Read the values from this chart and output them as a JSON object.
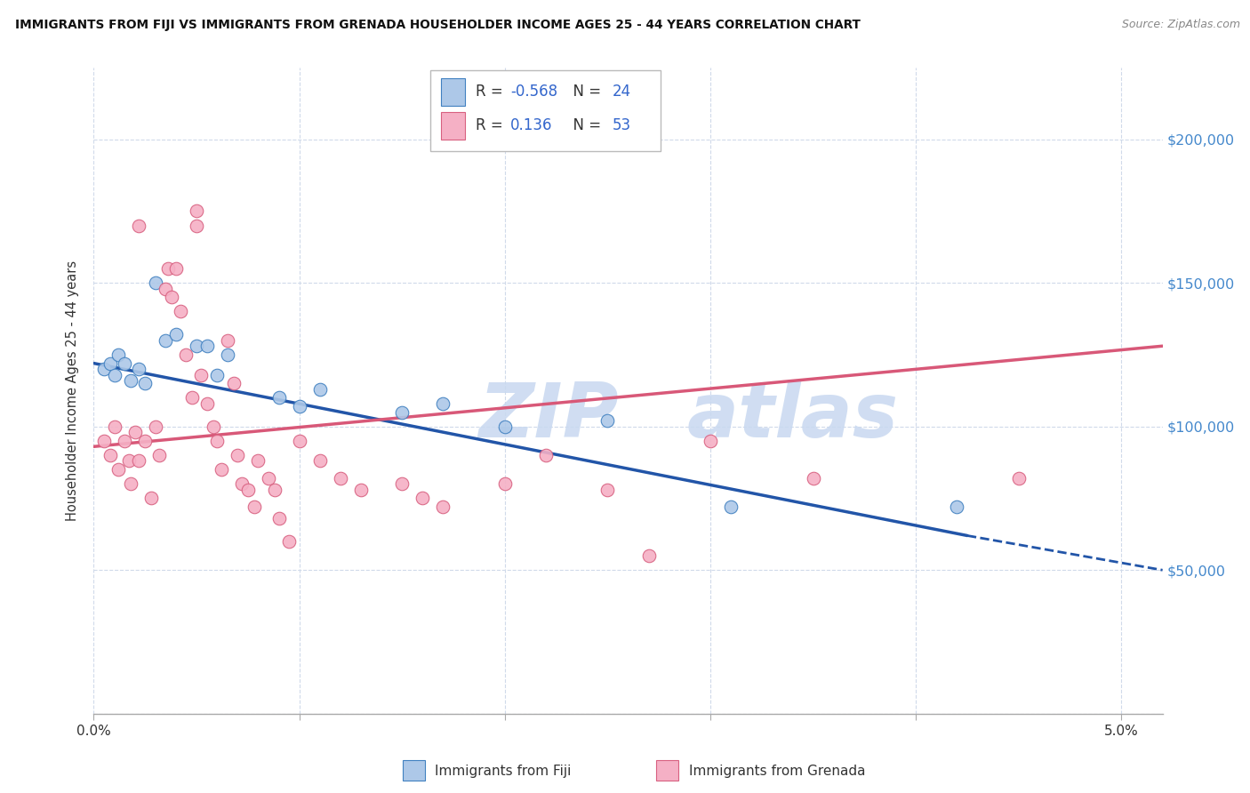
{
  "title": "IMMIGRANTS FROM FIJI VS IMMIGRANTS FROM GRENADA HOUSEHOLDER INCOME AGES 25 - 44 YEARS CORRELATION CHART",
  "source": "Source: ZipAtlas.com",
  "ylabel": "Householder Income Ages 25 - 44 years",
  "xlim": [
    0.0,
    5.2
  ],
  "ylim": [
    0,
    225000
  ],
  "yticks": [
    0,
    50000,
    100000,
    150000,
    200000
  ],
  "ytick_labels_right": [
    "",
    "$50,000",
    "$100,000",
    "$150,000",
    "$200,000"
  ],
  "xticks": [
    0.0,
    1.0,
    2.0,
    3.0,
    4.0,
    5.0
  ],
  "xtick_labels": [
    "0.0%",
    "",
    "",
    "",
    "",
    "5.0%"
  ],
  "fiji_R": "-0.568",
  "fiji_N": "24",
  "grenada_R": "0.136",
  "grenada_N": "53",
  "fiji_face_color": "#adc8e8",
  "fiji_edge_color": "#4080c0",
  "grenada_face_color": "#f5b0c5",
  "grenada_edge_color": "#d86080",
  "fiji_line_color": "#2255a8",
  "grenada_line_color": "#d85878",
  "watermark_color": "#c8d8f0",
  "fiji_line_x0": 0.0,
  "fiji_line_y0": 122000,
  "fiji_line_x1": 4.25,
  "fiji_line_y1": 62000,
  "fiji_dash_x0": 4.25,
  "fiji_dash_y0": 62000,
  "fiji_dash_x1": 5.2,
  "fiji_dash_y1": 50000,
  "grenada_line_x0": 0.0,
  "grenada_line_y0": 93000,
  "grenada_line_x1": 5.2,
  "grenada_line_y1": 128000,
  "fiji_scatter_x": [
    0.05,
    0.08,
    0.1,
    0.12,
    0.15,
    0.18,
    0.22,
    0.25,
    0.3,
    0.35,
    0.4,
    0.5,
    0.55,
    0.6,
    0.65,
    0.9,
    1.0,
    1.1,
    1.5,
    1.7,
    2.0,
    2.5,
    3.1,
    4.2
  ],
  "fiji_scatter_y": [
    120000,
    122000,
    118000,
    125000,
    122000,
    116000,
    120000,
    115000,
    150000,
    130000,
    132000,
    128000,
    128000,
    118000,
    125000,
    110000,
    107000,
    113000,
    105000,
    108000,
    100000,
    102000,
    72000,
    72000
  ],
  "grenada_scatter_x": [
    0.05,
    0.08,
    0.1,
    0.12,
    0.15,
    0.17,
    0.18,
    0.2,
    0.22,
    0.25,
    0.28,
    0.3,
    0.32,
    0.35,
    0.36,
    0.38,
    0.4,
    0.42,
    0.45,
    0.48,
    0.5,
    0.52,
    0.55,
    0.58,
    0.6,
    0.62,
    0.65,
    0.68,
    0.7,
    0.72,
    0.75,
    0.78,
    0.8,
    0.85,
    0.88,
    0.9,
    0.95,
    1.0,
    1.1,
    1.2,
    1.3,
    1.5,
    1.6,
    1.7,
    2.0,
    2.2,
    2.5,
    2.7,
    3.0,
    3.5,
    4.5,
    0.5,
    0.22
  ],
  "grenada_scatter_y": [
    95000,
    90000,
    100000,
    85000,
    95000,
    88000,
    80000,
    98000,
    88000,
    95000,
    75000,
    100000,
    90000,
    148000,
    155000,
    145000,
    155000,
    140000,
    125000,
    110000,
    175000,
    118000,
    108000,
    100000,
    95000,
    85000,
    130000,
    115000,
    90000,
    80000,
    78000,
    72000,
    88000,
    82000,
    78000,
    68000,
    60000,
    95000,
    88000,
    82000,
    78000,
    80000,
    75000,
    72000,
    80000,
    90000,
    78000,
    55000,
    95000,
    82000,
    82000,
    170000,
    170000
  ]
}
